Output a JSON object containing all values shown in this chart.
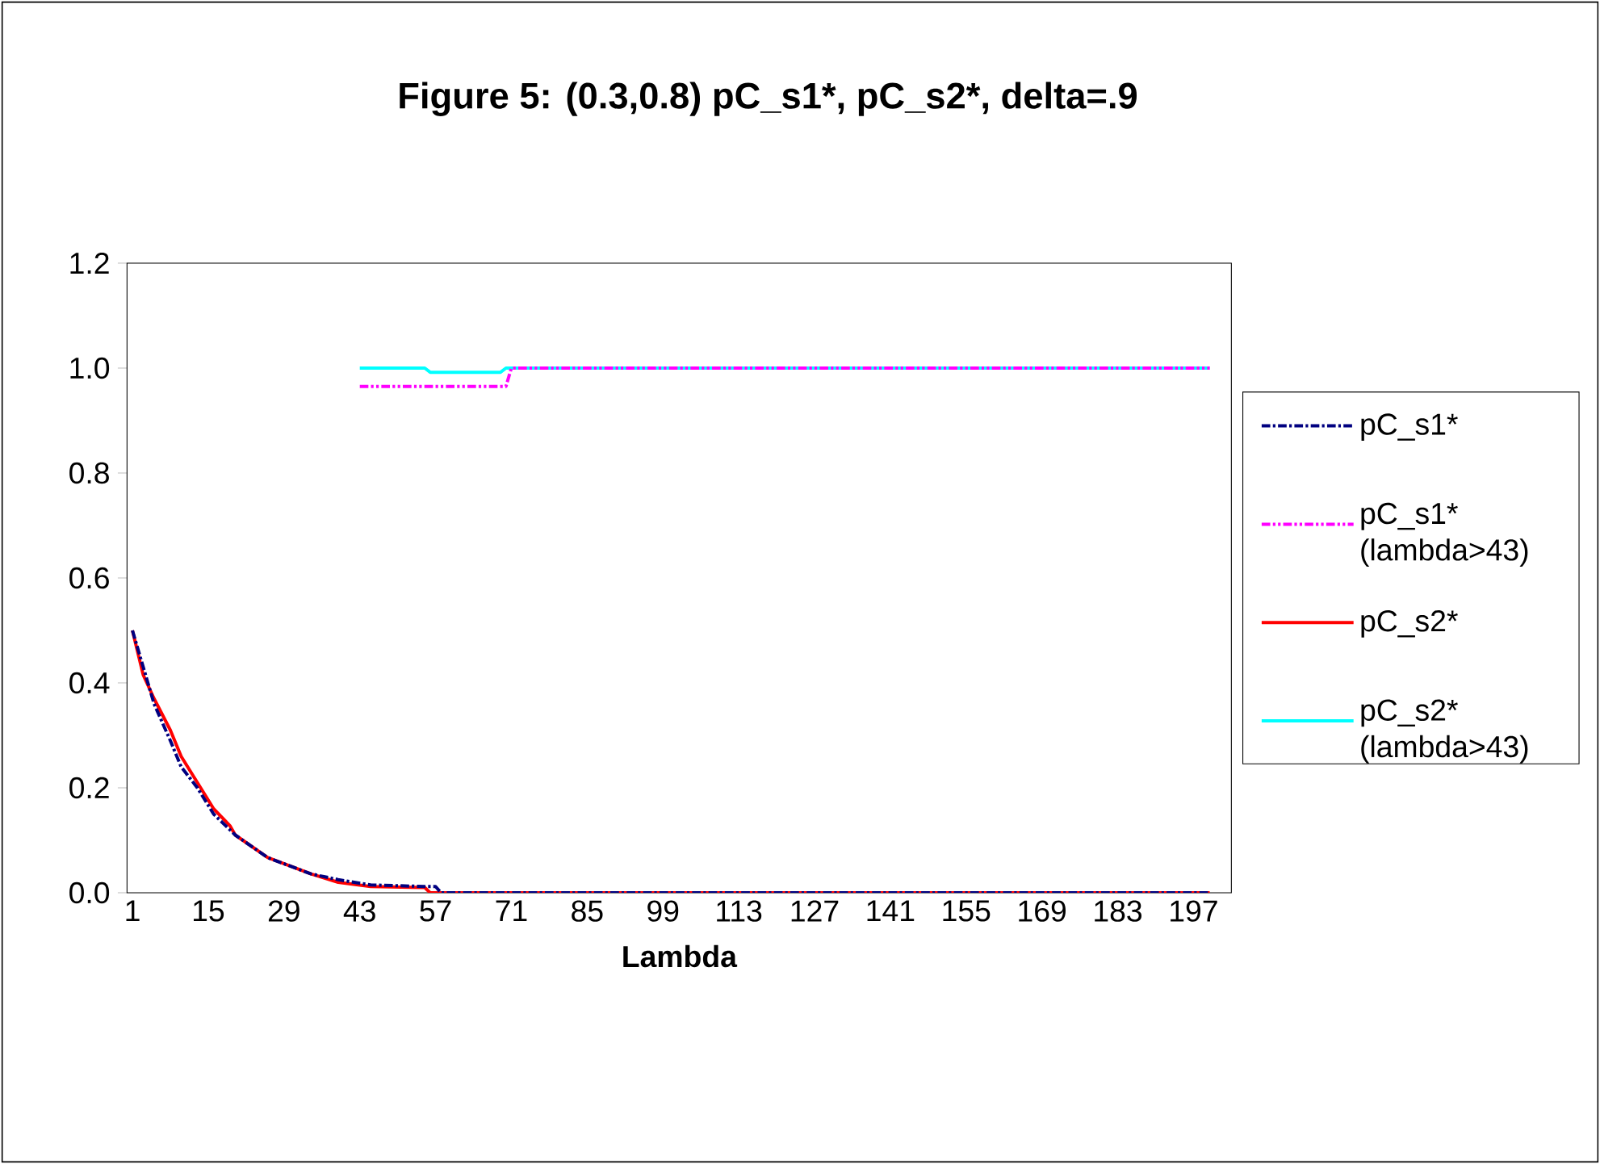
{
  "chart_data": {
    "type": "line",
    "title": "Figure 5:  (0.3,0.8) pC_s1*, pC_s2*, delta=.9",
    "xlabel": "Lambda",
    "xlim": [
      0,
      204
    ],
    "xticks": [
      1,
      15,
      29,
      43,
      57,
      71,
      85,
      99,
      113,
      127,
      141,
      155,
      169,
      183,
      197
    ],
    "ylim": [
      0,
      1.2
    ],
    "yticks": [
      {
        "value": 0,
        "label": "0.0"
      },
      {
        "value": 0.2,
        "label": "0.2"
      },
      {
        "value": 0.4,
        "label": "0.4"
      },
      {
        "value": 0.6,
        "label": "0.6"
      },
      {
        "value": 0.8,
        "label": "0.8"
      },
      {
        "value": 1.0,
        "label": "1.0"
      },
      {
        "value": 1.2,
        "label": "1.2"
      }
    ],
    "grid": false,
    "legend": "right",
    "marker": "none",
    "series": [
      {
        "name": "pC_s1*",
        "color": "#000080",
        "line_style": "dashdot",
        "x": [
          1,
          3,
          5,
          8,
          10,
          13,
          16,
          20,
          26,
          34,
          39,
          45,
          55,
          57,
          58,
          200
        ],
        "values": [
          0.5,
          0.43,
          0.36,
          0.29,
          0.24,
          0.2,
          0.15,
          0.11,
          0.067,
          0.036,
          0.025,
          0.015,
          0.012,
          0.012,
          0,
          0
        ]
      },
      {
        "name": "pC_s1* (lambda>43)",
        "color": "#ff00ff",
        "line_style": "dashdotdot",
        "x": [
          43,
          70,
          71,
          200
        ],
        "values": [
          0.965,
          0.965,
          1.0,
          1.0
        ]
      },
      {
        "name": "pC_s2*",
        "color": "#ff0000",
        "line_style": "solid",
        "x": [
          1,
          3,
          5,
          8,
          10,
          13,
          16,
          19,
          20,
          26,
          34,
          39,
          45,
          55,
          56,
          200
        ],
        "values": [
          0.5,
          0.415,
          0.37,
          0.31,
          0.26,
          0.21,
          0.16,
          0.128,
          0.11,
          0.067,
          0.036,
          0.02,
          0.012,
          0.01,
          0,
          0
        ]
      },
      {
        "name": "pC_s2* (lambda>43)",
        "color": "#00ffff",
        "line_style": "solid",
        "x": [
          43,
          55,
          56,
          69,
          70,
          200
        ],
        "values": [
          1.0,
          1.0,
          0.992,
          0.992,
          1.0,
          1.0
        ]
      }
    ]
  }
}
